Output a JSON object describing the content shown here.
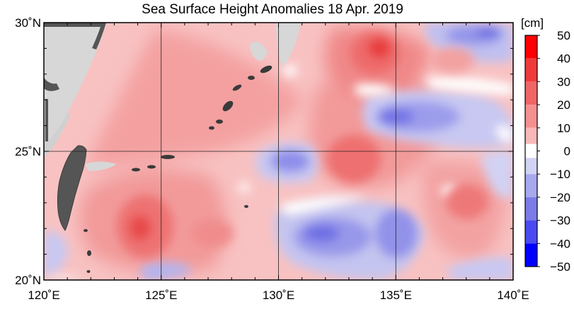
{
  "title": "Sea Surface Height Anomalies  18 Apr. 2019",
  "map": {
    "lon_range": [
      120,
      140
    ],
    "lat_range": [
      20,
      30
    ],
    "x_ticks": [
      {
        "value": 120,
        "label": "120˚E"
      },
      {
        "value": 125,
        "label": "125˚E"
      },
      {
        "value": 130,
        "label": "130˚E"
      },
      {
        "value": 135,
        "label": "135˚E"
      },
      {
        "value": 140,
        "label": "140˚E"
      }
    ],
    "y_ticks": [
      {
        "value": 30,
        "label": "30˚N"
      },
      {
        "value": 25,
        "label": "25˚N"
      },
      {
        "value": 20,
        "label": "20˚N"
      }
    ],
    "grid": true,
    "land_color": "#d7d7d7",
    "taiwan_color": "#555555",
    "anomaly_features": [
      {
        "type": "high",
        "lon": 134.4,
        "lat": 29.3,
        "value_cm": 35
      },
      {
        "type": "high",
        "lon": 133.0,
        "lat": 25.0,
        "value_cm": 28
      },
      {
        "type": "high",
        "lon": 124.2,
        "lat": 22.0,
        "value_cm": 30
      },
      {
        "type": "high",
        "lon": 137.5,
        "lat": 23.0,
        "value_cm": 24
      },
      {
        "type": "low",
        "lon": 130.5,
        "lat": 25.0,
        "value_cm": -18
      },
      {
        "type": "low",
        "lon": 136.0,
        "lat": 26.8,
        "value_cm": -22
      },
      {
        "type": "low",
        "lon": 131.0,
        "lat": 21.3,
        "value_cm": -20
      },
      {
        "type": "low",
        "lon": 138.5,
        "lat": 29.7,
        "value_cm": -18
      },
      {
        "type": "low",
        "lon": 139.0,
        "lat": 25.8,
        "value_cm": -12
      }
    ]
  },
  "colorbar": {
    "unit": "[cm]",
    "levels": [
      {
        "value": 50,
        "label": "50"
      },
      {
        "value": 40,
        "label": "40"
      },
      {
        "value": 30,
        "label": "30"
      },
      {
        "value": 20,
        "label": "20"
      },
      {
        "value": 10,
        "label": "10"
      },
      {
        "value": 0,
        "label": "0"
      },
      {
        "value": -10,
        "label": "−10"
      },
      {
        "value": -20,
        "label": "−20"
      },
      {
        "value": -30,
        "label": "−30"
      },
      {
        "value": -40,
        "label": "−40"
      },
      {
        "value": -50,
        "label": "−50"
      }
    ],
    "bands": [
      {
        "from": 40,
        "to": 50,
        "color": "#ff0000"
      },
      {
        "from": 30,
        "to": 40,
        "color": "#f03a3a"
      },
      {
        "from": 20,
        "to": 30,
        "color": "#f06666"
      },
      {
        "from": 10,
        "to": 20,
        "color": "#f59090"
      },
      {
        "from": 3,
        "to": 10,
        "color": "#f8b8b8"
      },
      {
        "from": -3,
        "to": 3,
        "color": "#ffffff"
      },
      {
        "from": -10,
        "to": -3,
        "color": "#d2d2f4"
      },
      {
        "from": -20,
        "to": -10,
        "color": "#a8a8ee"
      },
      {
        "from": -30,
        "to": -20,
        "color": "#7c7ce8"
      },
      {
        "from": -40,
        "to": -30,
        "color": "#4a4af0"
      },
      {
        "from": -50,
        "to": -40,
        "color": "#0000ff"
      }
    ]
  }
}
